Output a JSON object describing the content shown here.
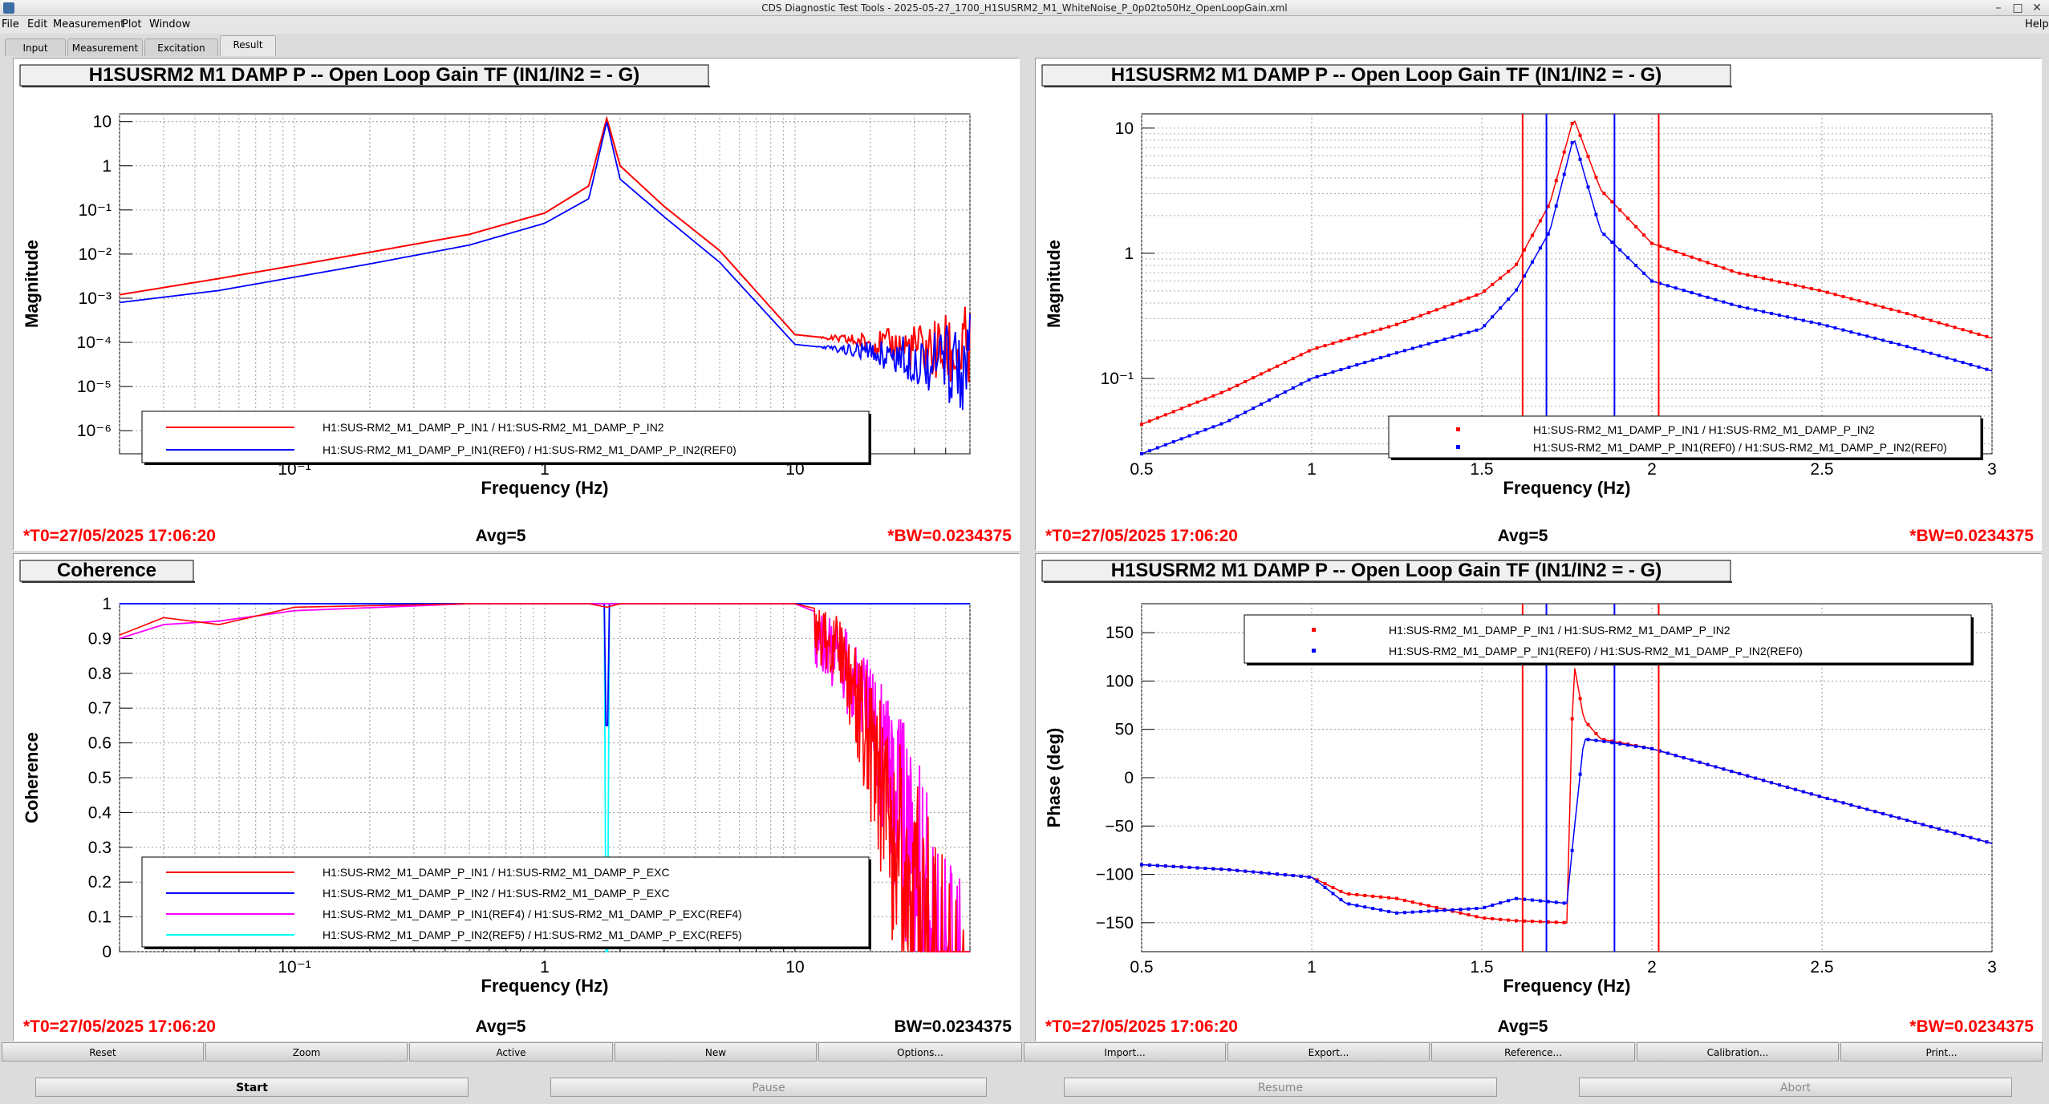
{
  "window": {
    "title": "CDS Diagnostic Test Tools - 2025-05-27_1700_H1SUSRM2_M1_WhiteNoise_P_0p02to50Hz_OpenLoopGain.xml",
    "help": "Help"
  },
  "menu": [
    "File",
    "Edit",
    "Measurement",
    "Plot",
    "Window"
  ],
  "tabs": [
    "Input",
    "Measurement",
    "Excitation",
    "Result"
  ],
  "colors": {
    "red": "#ff0000",
    "blue": "#0000ff",
    "magenta": "#ff00ff",
    "cyan": "#00ffff",
    "status": "#ff0000"
  },
  "panels": {
    "tl": {
      "title": "H1SUSRM2 M1 DAMP P -- Open Loop Gain TF (IN1/IN2 = - G)",
      "ylabel": "Magnitude",
      "xlabel": "Frequency (Hz)",
      "xticks": [
        "10⁻¹",
        "1",
        "10"
      ],
      "yticks": [
        "10",
        "1",
        "10⁻¹",
        "10⁻²",
        "10⁻³",
        "10⁻⁴",
        "10⁻⁵",
        "10⁻⁶"
      ],
      "legend": [
        "H1:SUS-RM2_M1_DAMP_P_IN1 / H1:SUS-RM2_M1_DAMP_P_IN2",
        "H1:SUS-RM2_M1_DAMP_P_IN1(REF0) / H1:SUS-RM2_M1_DAMP_P_IN2(REF0)"
      ],
      "t0": "*T0=27/05/2025 17:06:20",
      "avg": "Avg=5",
      "bw": "*BW=0.0234375"
    },
    "tr": {
      "title": "H1SUSRM2 M1 DAMP P -- Open Loop Gain TF (IN1/IN2 = - G)",
      "ylabel": "Magnitude",
      "xlabel": "Frequency (Hz)",
      "xticks": [
        "0.5",
        "1",
        "1.5",
        "2",
        "2.5",
        "3"
      ],
      "yticks": [
        "10",
        "1",
        "10⁻¹"
      ],
      "legend": [
        "H1:SUS-RM2_M1_DAMP_P_IN1 / H1:SUS-RM2_M1_DAMP_P_IN2",
        "H1:SUS-RM2_M1_DAMP_P_IN1(REF0) / H1:SUS-RM2_M1_DAMP_P_IN2(REF0)"
      ],
      "t0": "*T0=27/05/2025 17:06:20",
      "avg": "Avg=5",
      "bw": "*BW=0.0234375"
    },
    "bl": {
      "title": "Coherence",
      "ylabel": "Coherence",
      "xlabel": "Frequency (Hz)",
      "xticks": [
        "10⁻¹",
        "1",
        "10"
      ],
      "yticks": [
        "1",
        "0.9",
        "0.8",
        "0.7",
        "0.6",
        "0.5",
        "0.4",
        "0.3",
        "0.2",
        "0.1",
        "0"
      ],
      "legend": [
        "H1:SUS-RM2_M1_DAMP_P_IN1 / H1:SUS-RM2_M1_DAMP_P_EXC",
        "H1:SUS-RM2_M1_DAMP_P_IN2 / H1:SUS-RM2_M1_DAMP_P_EXC",
        "H1:SUS-RM2_M1_DAMP_P_IN1(REF4) / H1:SUS-RM2_M1_DAMP_P_EXC(REF4)",
        "H1:SUS-RM2_M1_DAMP_P_IN2(REF5) / H1:SUS-RM2_M1_DAMP_P_EXC(REF5)"
      ],
      "t0": "*T0=27/05/2025 17:06:20",
      "avg": "Avg=5",
      "bw": "BW=0.0234375"
    },
    "br": {
      "title": "H1SUSRM2 M1 DAMP P -- Open Loop Gain TF (IN1/IN2 = - G)",
      "ylabel": "Phase (deg)",
      "xlabel": "Frequency (Hz)",
      "xticks": [
        "0.5",
        "1",
        "1.5",
        "2",
        "2.5",
        "3"
      ],
      "yticks": [
        "150",
        "100",
        "50",
        "0",
        "−50",
        "−100",
        "−150"
      ],
      "legend": [
        "H1:SUS-RM2_M1_DAMP_P_IN1 / H1:SUS-RM2_M1_DAMP_P_IN2",
        "H1:SUS-RM2_M1_DAMP_P_IN1(REF0) / H1:SUS-RM2_M1_DAMP_P_IN2(REF0)"
      ],
      "t0": "*T0=27/05/2025 17:06:20",
      "avg": "Avg=5",
      "bw": "*BW=0.0234375"
    }
  },
  "chart_data": [
    {
      "type": "line",
      "title": "H1SUSRM2 M1 DAMP P -- Open Loop Gain TF (IN1/IN2 = - G)",
      "xlabel": "Frequency (Hz)",
      "ylabel": "Magnitude",
      "xscale": "log",
      "yscale": "log",
      "xlim": [
        0.02,
        50
      ],
      "ylim": [
        3e-07,
        15
      ],
      "grid": true,
      "legend_position": "bottom",
      "x": [
        0.02,
        0.05,
        0.1,
        0.2,
        0.5,
        1,
        1.5,
        1.77,
        2,
        3,
        5,
        10,
        20,
        50
      ],
      "series": [
        {
          "name": "H1:SUS-RM2_M1_DAMP_P_IN1 / H1:SUS-RM2_M1_DAMP_P_IN2",
          "values": [
            0.0012,
            0.0028,
            0.0055,
            0.011,
            0.028,
            0.085,
            0.35,
            12,
            1.0,
            0.12,
            0.012,
            0.00015,
            0.0001,
            5e-05
          ]
        },
        {
          "name": "H1:SUS-RM2_M1_DAMP_P_IN1(REF0) / H1:SUS-RM2_M1_DAMP_P_IN2(REF0)",
          "values": [
            0.0008,
            0.0015,
            0.003,
            0.006,
            0.016,
            0.05,
            0.18,
            10,
            0.5,
            0.07,
            0.0065,
            9e-05,
            6e-05,
            3e-05
          ]
        }
      ]
    },
    {
      "type": "scatter",
      "title": "H1SUSRM2 M1 DAMP P -- Open Loop Gain TF (IN1/IN2 = - G)",
      "xlabel": "Frequency (Hz)",
      "ylabel": "Magnitude",
      "yscale": "log",
      "xlim": [
        0.5,
        3
      ],
      "ylim": [
        0.025,
        13
      ],
      "grid": true,
      "legend_position": "bottom-right",
      "markers": {
        "red_vertical_lines": [
          1.62,
          2.02
        ],
        "blue_vertical_lines": [
          1.69,
          1.89
        ]
      },
      "x": [
        0.5,
        0.75,
        1.0,
        1.25,
        1.5,
        1.6,
        1.7,
        1.77,
        1.85,
        2.0,
        2.25,
        2.5,
        2.75,
        3.0
      ],
      "series": [
        {
          "name": "H1:SUS-RM2_M1_DAMP_P_IN1 / H1:SUS-RM2_M1_DAMP_P_IN2",
          "values": [
            0.043,
            0.08,
            0.17,
            0.27,
            0.48,
            0.8,
            2.5,
            12,
            3.2,
            1.2,
            0.7,
            0.5,
            0.33,
            0.21
          ]
        },
        {
          "name": "H1:SUS-RM2_M1_DAMP_P_IN1(REF0) / H1:SUS-RM2_M1_DAMP_P_IN2(REF0)",
          "values": [
            0.025,
            0.045,
            0.1,
            0.16,
            0.25,
            0.5,
            1.5,
            8.5,
            1.5,
            0.6,
            0.38,
            0.27,
            0.18,
            0.115
          ]
        }
      ]
    },
    {
      "type": "line",
      "title": "Coherence",
      "xlabel": "Frequency (Hz)",
      "ylabel": "Coherence",
      "xscale": "log",
      "xlim": [
        0.02,
        50
      ],
      "ylim": [
        0,
        1
      ],
      "grid": true,
      "legend_position": "bottom",
      "x": [
        0.02,
        0.03,
        0.05,
        0.1,
        0.5,
        1.5,
        1.77,
        2,
        10,
        15,
        20,
        30,
        50
      ],
      "series": [
        {
          "name": "H1:SUS-RM2_M1_DAMP_P_IN1 / H1:SUS-RM2_M1_DAMP_P_EXC",
          "values": [
            0.91,
            0.96,
            0.94,
            0.99,
            1.0,
            1.0,
            0.99,
            1.0,
            1.0,
            0.97,
            0.8,
            0.5,
            0.1
          ]
        },
        {
          "name": "H1:SUS-RM2_M1_DAMP_P_IN2 / H1:SUS-RM2_M1_DAMP_P_EXC",
          "values": [
            1.0,
            1.0,
            1.0,
            1.0,
            1.0,
            1.0,
            0.65,
            1.0,
            1.0,
            1.0,
            1.0,
            1.0,
            1.0
          ]
        },
        {
          "name": "H1:SUS-RM2_M1_DAMP_P_IN1(REF4) / H1:SUS-RM2_M1_DAMP_P_EXC(REF4)",
          "values": [
            0.9,
            0.94,
            0.95,
            0.98,
            1.0,
            1.0,
            1.0,
            1.0,
            1.0,
            0.95,
            0.85,
            0.6,
            0.15
          ]
        },
        {
          "name": "H1:SUS-RM2_M1_DAMP_P_IN2(REF5) / H1:SUS-RM2_M1_DAMP_P_EXC(REF5)",
          "values": [
            1.0,
            1.0,
            1.0,
            1.0,
            1.0,
            1.0,
            0.0,
            1.0,
            1.0,
            1.0,
            1.0,
            1.0,
            1.0
          ]
        }
      ]
    },
    {
      "type": "scatter",
      "title": "H1SUSRM2 M1 DAMP P -- Open Loop Gain TF (IN1/IN2 = - G)",
      "xlabel": "Frequency (Hz)",
      "ylabel": "Phase (deg)",
      "xlim": [
        0.5,
        3
      ],
      "ylim": [
        -180,
        180
      ],
      "grid": true,
      "legend_position": "top-right",
      "markers": {
        "red_vertical_lines": [
          1.62,
          2.02
        ],
        "blue_vertical_lines": [
          1.69,
          1.89
        ]
      },
      "x": [
        0.5,
        0.75,
        1.0,
        1.1,
        1.25,
        1.5,
        1.6,
        1.75,
        1.77,
        1.8,
        1.85,
        2.0,
        2.5,
        3.0
      ],
      "series": [
        {
          "name": "H1:SUS-RM2_M1_DAMP_P_IN1 / H1:SUS-RM2_M1_DAMP_P_IN2",
          "values": [
            -90,
            -95,
            -103,
            -120,
            -125,
            -145,
            -148,
            -150,
            120,
            60,
            40,
            30,
            -20,
            -68
          ]
        },
        {
          "name": "H1:SUS-RM2_M1_DAMP_P_IN1(REF0) / H1:SUS-RM2_M1_DAMP_P_IN2(REF0)",
          "values": [
            -90,
            -95,
            -103,
            -130,
            -140,
            -135,
            -125,
            -130,
            -60,
            40,
            38,
            30,
            -20,
            -68
          ]
        }
      ]
    }
  ],
  "buttons": [
    "Reset",
    "Zoom",
    "Active",
    "New",
    "Options...",
    "Import...",
    "Export...",
    "Reference...",
    "Calibration...",
    "Print..."
  ],
  "controls": [
    "Start",
    "Pause",
    "Resume",
    "Abort"
  ]
}
